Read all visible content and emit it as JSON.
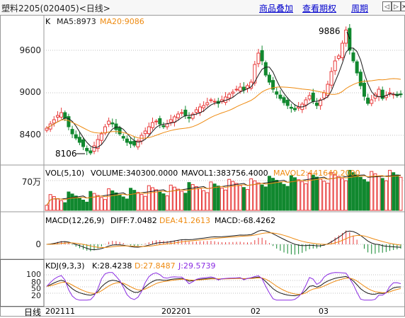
{
  "window": {
    "title": "塑料2205(020405)<日线>"
  },
  "toolbar": {
    "links": [
      "商品叠加",
      "查看期权",
      "周期"
    ],
    "nav_buttons": {
      "left": "◁",
      "right": "▷",
      "close": "×"
    }
  },
  "kline": {
    "label": "K",
    "ma5": "MA5:8973",
    "ma20": "MA20:9086",
    "axis_labels": [
      "9600",
      "9000",
      "8400"
    ],
    "high_annotation": "9886",
    "low_annotation": "8106"
  },
  "volume": {
    "header": "VOL(5,10)",
    "volume": "VOLUME:340300.0000",
    "mavol1": "MAVOL1:383756.4000",
    "mavol2": "MAVOL2:441649.2000",
    "axis_label": "70万"
  },
  "macd": {
    "header": "MACD(12,26,9)",
    "diff": "DIFF:7.0482",
    "dea": "DEA:41.2613",
    "macd": "MACD:-68.4262",
    "axis_label": "0"
  },
  "kdj": {
    "header": "KDJ(9,3,3)",
    "k": "K:28.4238",
    "d": "D:27.8487",
    "j": "J:29.5739",
    "axis_labels": [
      "100",
      "80",
      "50",
      "20"
    ]
  },
  "xaxis": {
    "unit": "日线",
    "labels": [
      "202111",
      "202201",
      "02",
      "03"
    ]
  },
  "colors": {
    "up": "#e83a3a",
    "down": "#11882f",
    "ma5": "#1a1a1a",
    "ma20": "#ee8a10",
    "mavol1": "#1a1a1a",
    "mavol2": "#ee8a10",
    "kdj_k": "#1a1a1a",
    "kdj_d": "#ee8a10",
    "kdj_j": "#8a2be2"
  }
}
